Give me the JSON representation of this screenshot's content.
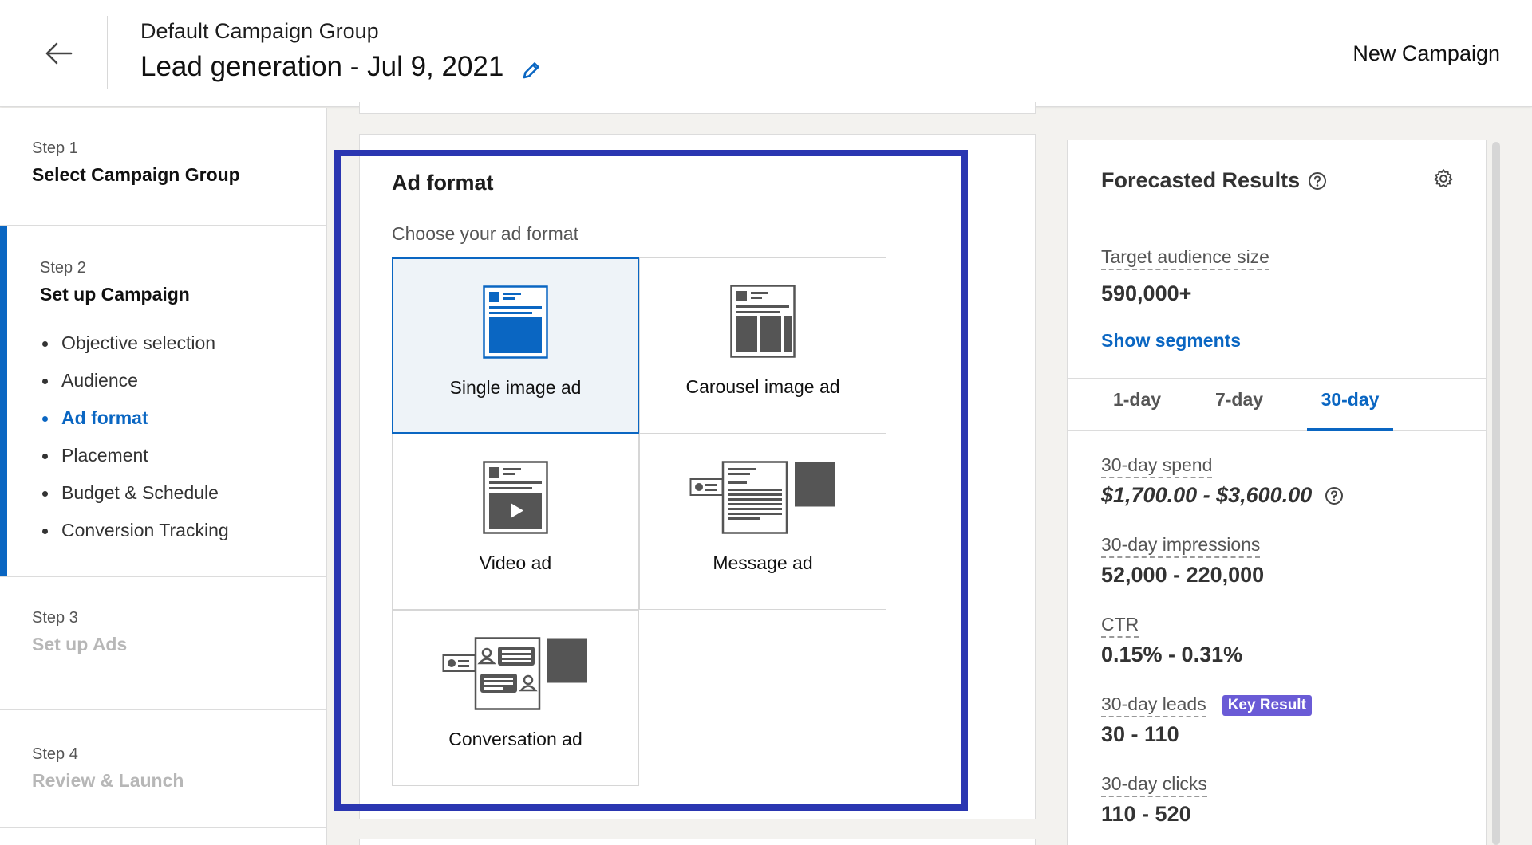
{
  "header": {
    "group_name": "Default Campaign Group",
    "campaign_title": "Lead generation - Jul 9, 2021",
    "new_campaign": "New Campaign"
  },
  "sidebar": {
    "steps": [
      {
        "num": "Step 1",
        "title": "Select Campaign Group"
      },
      {
        "num": "Step 2",
        "title": "Set up Campaign",
        "substeps": [
          "Objective selection",
          "Audience",
          "Ad format",
          "Placement",
          "Budget & Schedule",
          "Conversion Tracking"
        ]
      },
      {
        "num": "Step 3",
        "title": "Set up Ads"
      },
      {
        "num": "Step 4",
        "title": "Review & Launch"
      }
    ]
  },
  "ad_format": {
    "title": "Ad format",
    "subtitle": "Choose your ad format",
    "formats": [
      "Single image ad",
      "Carousel image ad",
      "Video ad",
      "Message ad",
      "Conversation ad"
    ],
    "selected": "Single image ad"
  },
  "forecast": {
    "title": "Forecasted Results",
    "audience_label": "Target audience size",
    "audience_value": "590,000+",
    "show_segments": "Show segments",
    "tabs": [
      "1-day",
      "7-day",
      "30-day"
    ],
    "active_tab": "30-day",
    "metrics": {
      "spend_label": "30-day spend",
      "spend_value": "$1,700.00 - $3,600.00",
      "impressions_label": "30-day impressions",
      "impressions_value": "52,000 - 220,000",
      "ctr_label": "CTR",
      "ctr_value": "0.15% - 0.31%",
      "leads_label": "30-day leads",
      "leads_badge": "Key Result",
      "leads_value": "30 - 110",
      "clicks_label": "30-day clicks",
      "clicks_value": "110 - 520"
    }
  },
  "colors": {
    "accent": "#0a66c2",
    "highlight_border": "#2a36b1",
    "key_badge": "#6a5bd6"
  }
}
